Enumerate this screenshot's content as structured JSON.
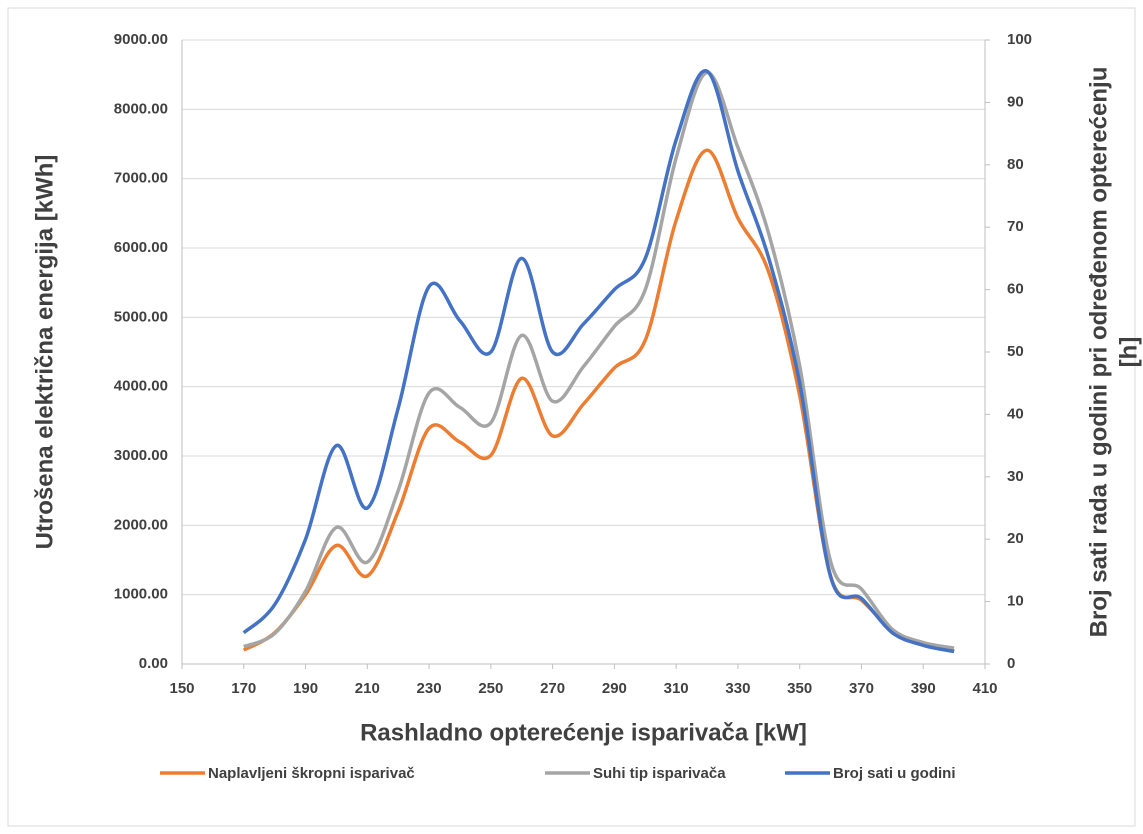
{
  "chart_data": {
    "type": "line",
    "xlabel": "Rashladno opterećenje isparivača [kW]",
    "ylabel": "Utrošena električna energija [kWh]",
    "y2label": [
      "Broj sati rada u godini pri određenom opterećenju",
      "[h]"
    ],
    "x": [
      170,
      180,
      190,
      200,
      210,
      220,
      230,
      240,
      250,
      260,
      270,
      280,
      290,
      300,
      310,
      320,
      330,
      340,
      350,
      360,
      370,
      380,
      390,
      400
    ],
    "series": [
      {
        "name": "Naplavljeni škropni isparivač",
        "color": "#ed7d31",
        "axis": "y",
        "values": [
          200,
          450,
          1000,
          1710,
          1270,
          2200,
          3400,
          3200,
          3010,
          4120,
          3290,
          3750,
          4270,
          4670,
          6400,
          7410,
          6430,
          5650,
          3870,
          1270,
          920,
          490,
          280,
          190
        ]
      },
      {
        "name": "Suhi tip isparivača",
        "color": "#a5a5a5",
        "axis": "y",
        "values": [
          250,
          440,
          1050,
          1970,
          1470,
          2500,
          3910,
          3700,
          3480,
          4740,
          3790,
          4290,
          4870,
          5400,
          7300,
          8530,
          7450,
          6200,
          4300,
          1480,
          1080,
          500,
          310,
          230
        ]
      },
      {
        "name": "Broj sati u godini",
        "color": "#4472c4",
        "axis": "y2",
        "values": [
          5,
          9.5,
          20,
          35,
          25,
          41,
          60.5,
          55,
          50,
          65,
          50,
          54.5,
          60,
          65,
          84,
          95,
          79,
          65,
          45,
          14,
          10.5,
          5,
          3,
          2
        ]
      }
    ],
    "xlim": [
      150,
      410
    ],
    "xticks": [
      150,
      170,
      190,
      210,
      230,
      250,
      270,
      290,
      310,
      330,
      350,
      370,
      390,
      410
    ],
    "ylim": [
      0,
      9000
    ],
    "yticks": [
      {
        "value": 0,
        "label": "0.00"
      },
      {
        "value": 1000,
        "label": "1000.00"
      },
      {
        "value": 2000,
        "label": "2000.00"
      },
      {
        "value": 3000,
        "label": "3000.00"
      },
      {
        "value": 4000,
        "label": "4000.00"
      },
      {
        "value": 5000,
        "label": "5000.00"
      },
      {
        "value": 6000,
        "label": "6000.00"
      },
      {
        "value": 7000,
        "label": "7000.00"
      },
      {
        "value": 8000,
        "label": "8000.00"
      },
      {
        "value": 9000,
        "label": "9000.00"
      }
    ],
    "y2lim": [
      0,
      100
    ],
    "y2ticks": [
      0,
      10,
      20,
      30,
      40,
      50,
      60,
      70,
      80,
      90,
      100
    ],
    "grid": true,
    "legend": "bottom"
  }
}
